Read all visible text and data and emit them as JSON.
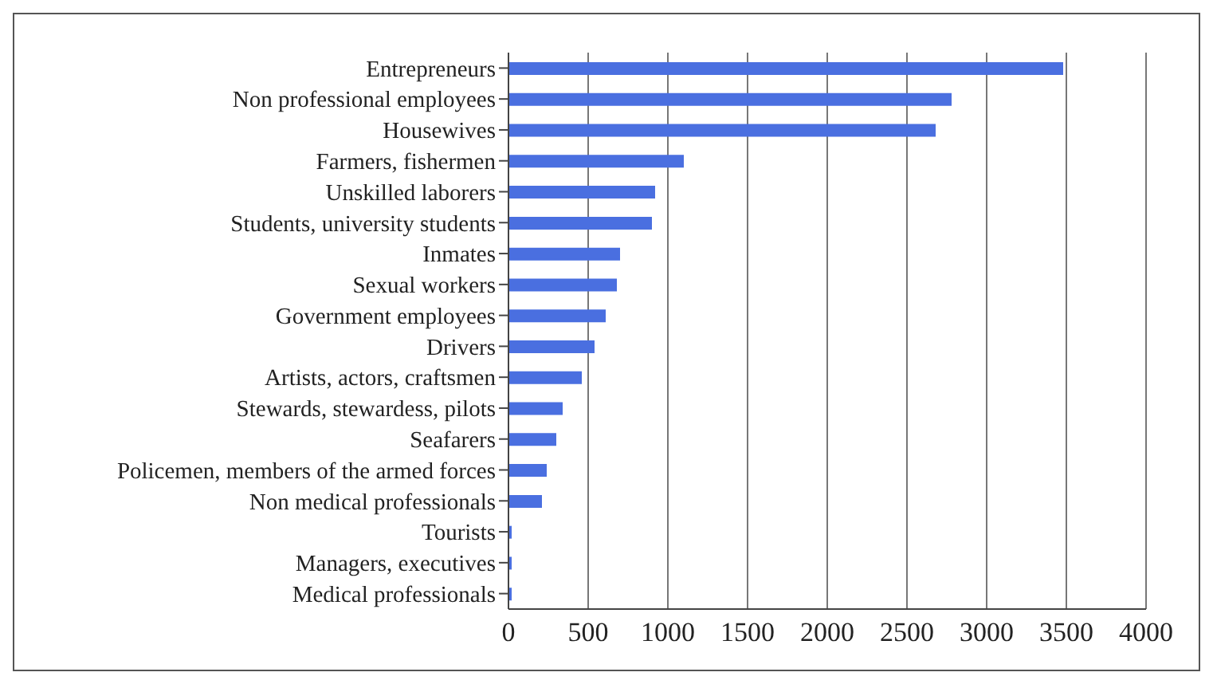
{
  "chart_data": {
    "type": "bar",
    "orientation": "horizontal",
    "categories": [
      "Entrepreneurs",
      "Non professional employees",
      "Housewives",
      "Farmers, fishermen",
      "Unskilled laborers",
      "Students, university students",
      "Inmates",
      "Sexual workers",
      "Government employees",
      "Drivers",
      "Artists, actors, craftsmen",
      "Stewards, stewardess, pilots",
      "Seafarers",
      "Policemen, members of the armed forces",
      "Non medical professionals",
      "Tourists",
      "Managers, executives",
      "Medical professionals"
    ],
    "values": [
      3480,
      2780,
      2680,
      1100,
      920,
      900,
      700,
      680,
      610,
      540,
      460,
      340,
      300,
      240,
      210,
      20,
      20,
      20
    ],
    "color": "#4a6fe0",
    "xlim": [
      0,
      4000
    ],
    "xticks": [
      0,
      500,
      1000,
      1500,
      2000,
      2500,
      3000,
      3500,
      4000
    ],
    "grid": "x"
  }
}
